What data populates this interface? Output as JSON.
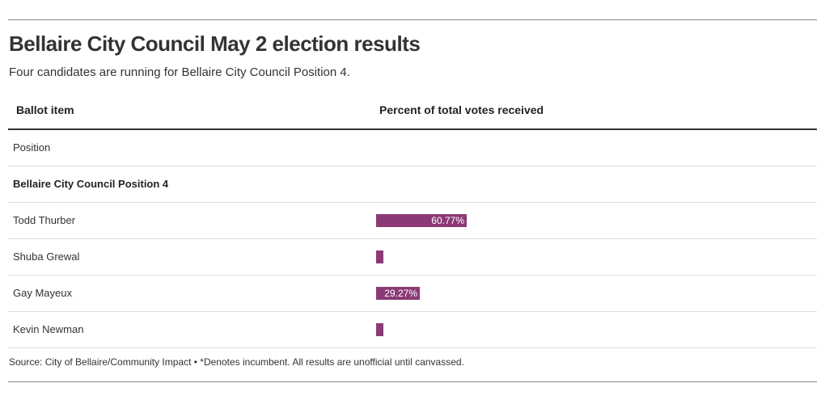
{
  "header": {
    "title": "Bellaire City Council May 2 election results",
    "subtitle": "Four candidates are running for Bellaire City Council Position 4."
  },
  "table": {
    "col_item": "Ballot item",
    "col_percent": "Percent of total votes received",
    "position_label": "Position",
    "race_label": "Bellaire City Council Position 4"
  },
  "colors": {
    "bar": "#8b3a75"
  },
  "chart_data": {
    "type": "bar",
    "orientation": "horizontal",
    "title": "Bellaire City Council May 2 election results",
    "subtitle": "Four candidates are running for Bellaire City Council Position 4.",
    "xlabel": "Percent of total votes received",
    "ylabel": "Ballot item",
    "xlim": [
      0,
      100
    ],
    "categories": [
      "Todd Thurber",
      "Shuba Grewal",
      "Gay Mayeux",
      "Kevin Newman"
    ],
    "values": [
      60.77,
      5,
      29.27,
      5
    ],
    "labels": [
      "60.77%",
      "",
      "29.27%",
      ""
    ]
  },
  "footer": {
    "source": "Source: City of Bellaire/Community Impact • *Denotes incumbent. All results are unofficial until canvassed."
  }
}
